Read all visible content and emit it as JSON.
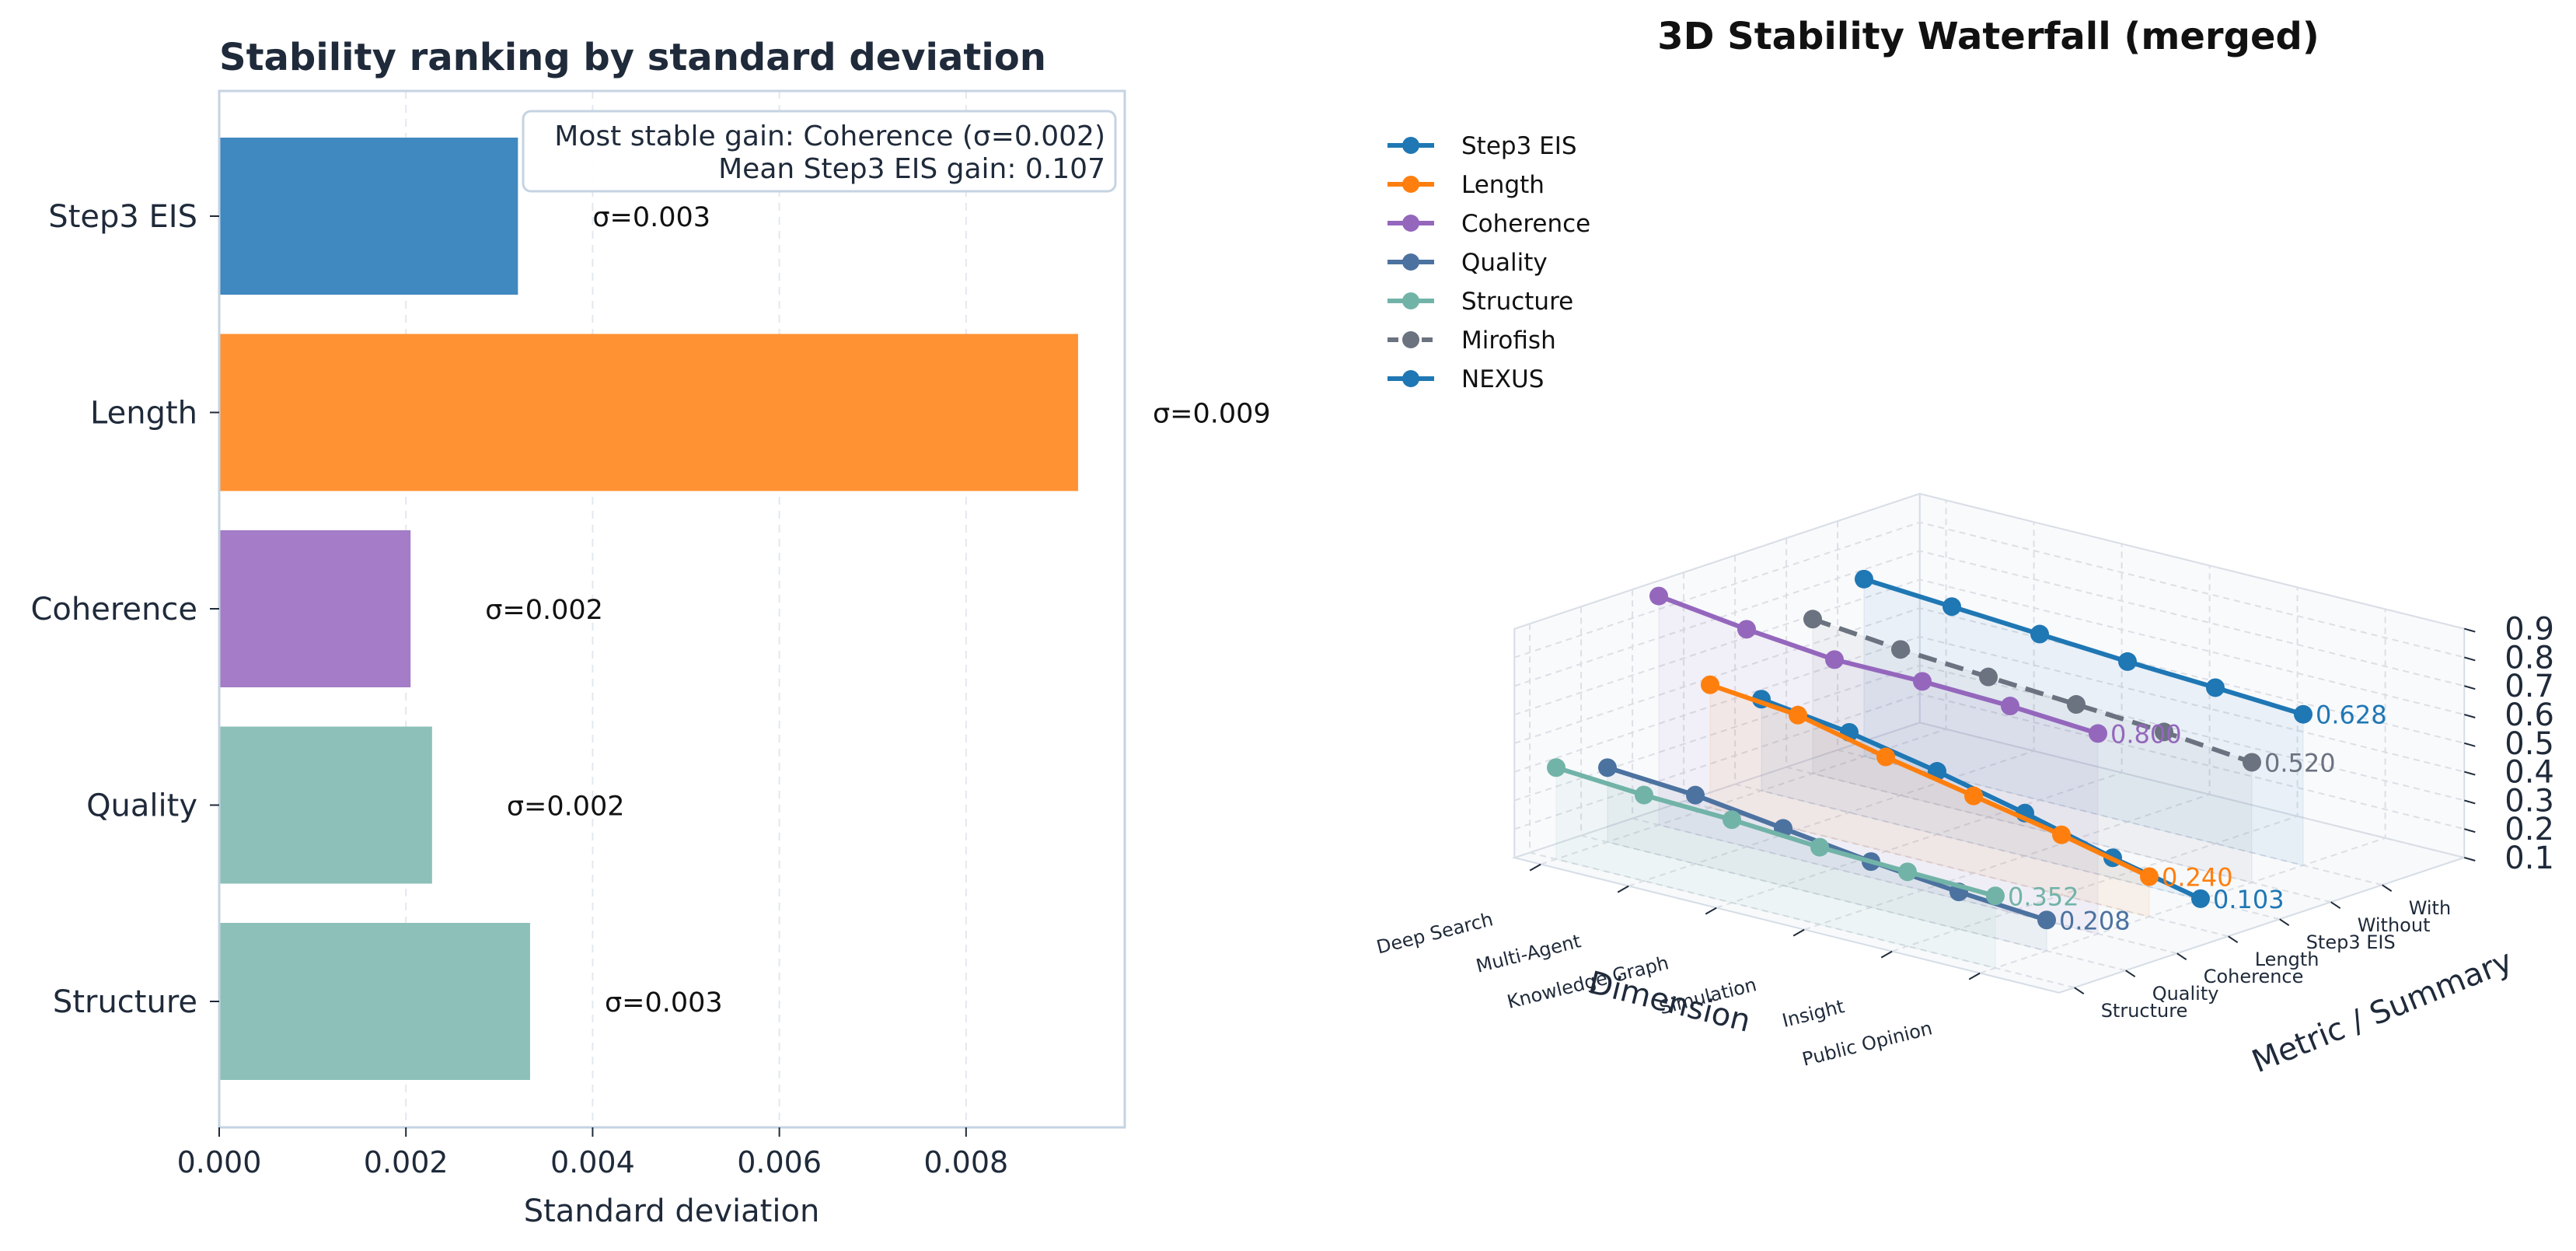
{
  "chart_data": [
    {
      "type": "bar",
      "orientation": "horizontal",
      "title": "Stability ranking by standard deviation",
      "xlabel": "Standard deviation",
      "ylabel": "",
      "xlim": [
        0,
        0.0097
      ],
      "xticks": [
        "0.000",
        "0.002",
        "0.004",
        "0.006",
        "0.008"
      ],
      "xtick_values": [
        0,
        0.002,
        0.004,
        0.006,
        0.008
      ],
      "grid": "x, dashed",
      "categories": [
        "Step3 EIS",
        "Length",
        "Coherence",
        "Quality",
        "Structure"
      ],
      "values": [
        0.0032,
        0.0092,
        0.00205,
        0.00228,
        0.00333
      ],
      "labels": [
        "σ=0.003",
        "σ=0.009",
        "σ=0.002",
        "σ=0.002",
        "σ=0.003"
      ],
      "colors": [
        "#3f88c0",
        "#ff9233",
        "#a47cc7",
        "#8cc0b8",
        "#8cc0b8"
      ],
      "annotation": [
        "Most stable gain: Coherence (σ=0.002)",
        "Mean Step3 EIS gain: 0.107"
      ],
      "annotation_placement": "top-right"
    },
    {
      "type": "line",
      "projection": "3d-waterfall",
      "title": "3D Stability Waterfall (merged)",
      "xlabel": "Dimension",
      "ylabel": "Metric / Summary",
      "zlabel": "",
      "x": [
        "Deep Search",
        "Multi-Agent",
        "Knowledge Graph",
        "Simulation",
        "Insight",
        "Public Opinion"
      ],
      "y_categories": [
        "Structure",
        "Quality",
        "Coherence",
        "Length",
        "Step3 EIS",
        "Without",
        "With"
      ],
      "zlim": [
        0.1,
        0.9
      ],
      "zticks": [
        "0.1",
        "0.2",
        "0.3",
        "0.4",
        "0.5",
        "0.6",
        "0.7",
        "0.8",
        "0.9"
      ],
      "legend_placement": "top-left",
      "series": [
        {
          "name": "Step3 EIS",
          "color": "#1f77b4",
          "style": "solid",
          "y_index": 4,
          "values": [
            0.42,
            0.38,
            0.32,
            0.25,
            0.17,
            0.103
          ],
          "end_label": "0.103"
        },
        {
          "name": "Length",
          "color": "#ff7f0e",
          "style": "solid",
          "y_index": 3,
          "values": [
            0.53,
            0.5,
            0.43,
            0.37,
            0.31,
            0.24
          ],
          "end_label": "0.240"
        },
        {
          "name": "Coherence",
          "color": "#9467bd",
          "style": "solid",
          "y_index": 2,
          "values": [
            0.9,
            0.86,
            0.83,
            0.83,
            0.82,
            0.8
          ],
          "end_label": "0.800"
        },
        {
          "name": "Quality",
          "color": "#4c72a0",
          "style": "solid",
          "y_index": 1,
          "values": [
            0.36,
            0.34,
            0.3,
            0.26,
            0.23,
            0.208
          ],
          "end_label": "0.208"
        },
        {
          "name": "Structure",
          "color": "#72b3a8",
          "style": "solid",
          "y_index": 0,
          "values": [
            0.42,
            0.4,
            0.39,
            0.37,
            0.36,
            0.352
          ],
          "end_label": "0.352"
        },
        {
          "name": "Mirofish",
          "color": "#6b7280",
          "style": "dashed",
          "y_index": 5,
          "values": [
            0.64,
            0.61,
            0.59,
            0.57,
            0.55,
            0.52
          ],
          "end_label": "0.520"
        },
        {
          "name": "NEXUS",
          "color": "#1f77b4",
          "style": "solid",
          "y_index": 6,
          "values": [
            0.72,
            0.7,
            0.68,
            0.66,
            0.645,
            0.628
          ],
          "end_label": "0.628"
        }
      ]
    }
  ]
}
